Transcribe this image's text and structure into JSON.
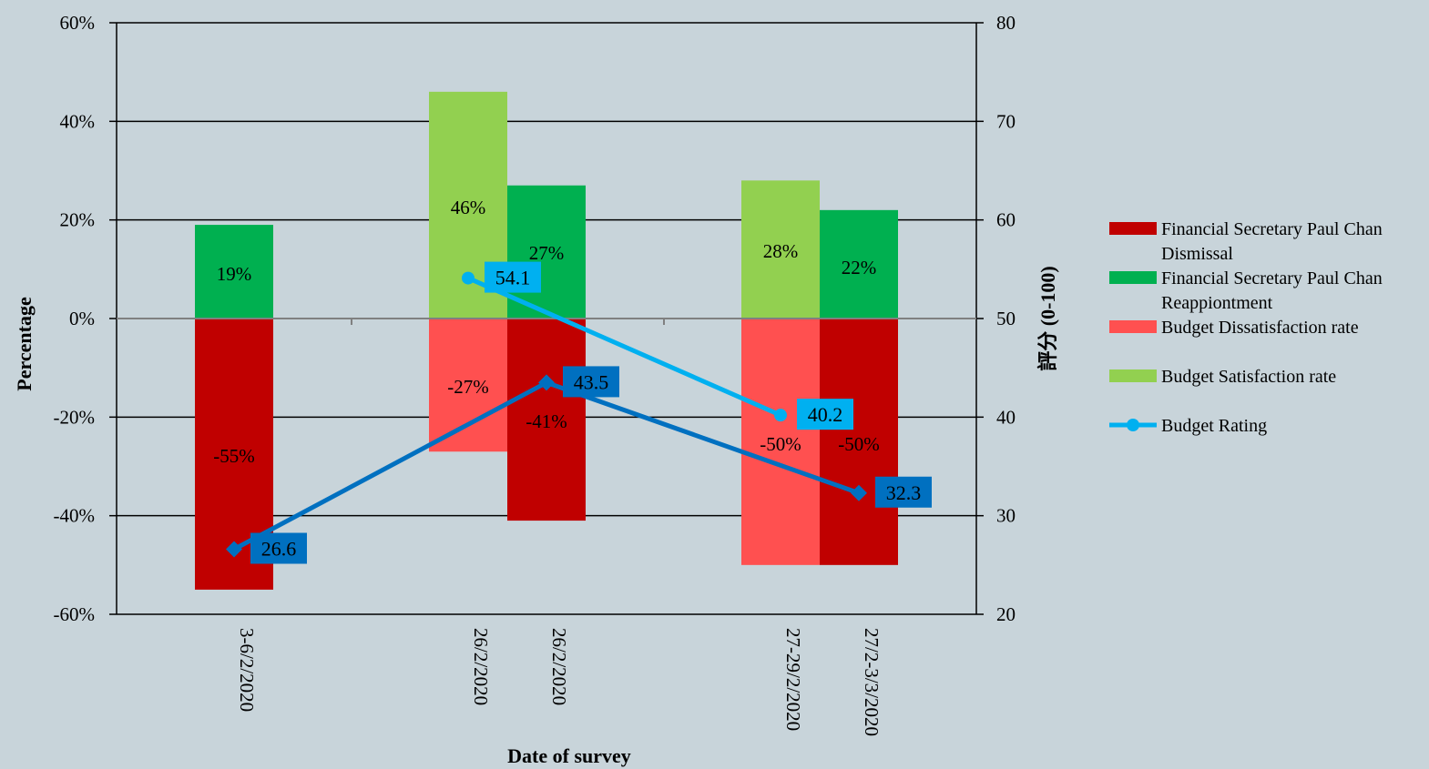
{
  "chart_data": {
    "type": "bar",
    "xlabel": "Date of survey",
    "ylabel": "Percentage",
    "y2label": "評分 (0-100)",
    "ylim": [
      -60,
      60
    ],
    "y2lim": [
      20,
      80
    ],
    "yticks": [
      "60%",
      "40%",
      "20%",
      "0%",
      "-20%",
      "-40%",
      "-60%"
    ],
    "y2ticks": [
      "80",
      "70",
      "60",
      "50",
      "40",
      "30",
      "20"
    ],
    "categories": [
      "3-6/2/2020",
      "26/2/2020",
      "26/2/2020",
      "27-29/2/2020",
      "27/2-3/3/2020"
    ],
    "series": [
      {
        "name": "Financial Secretary Paul Chan Dismissal",
        "color": "#c00000",
        "values": [
          -55,
          null,
          -41,
          null,
          -50
        ],
        "labels": [
          "-55%",
          "",
          "-41%",
          "",
          "-50%"
        ]
      },
      {
        "name": "Financial Secretary Paul Chan Reappiontment",
        "color": "#00b050",
        "values": [
          19,
          null,
          27,
          null,
          22
        ],
        "labels": [
          "19%",
          "",
          "27%",
          "",
          "22%"
        ]
      },
      {
        "name": "Budget Dissatisfaction rate",
        "color": "#ff5050",
        "values": [
          null,
          -27,
          null,
          -50,
          null
        ],
        "labels": [
          "",
          "-27%",
          "",
          "-50%",
          ""
        ]
      },
      {
        "name": "Budget Satisfaction rate",
        "color": "#92d050",
        "values": [
          null,
          46,
          null,
          28,
          null
        ],
        "labels": [
          "",
          "46%",
          "",
          "28%",
          ""
        ]
      }
    ],
    "lines": [
      {
        "name": "Budget Rating",
        "color": "#00b0f0",
        "marker": "circle",
        "axis": "right",
        "points": [
          {
            "category": 1,
            "value": 54.1
          },
          {
            "category": 3,
            "value": 40.2
          }
        ],
        "labels": [
          "54.1",
          "40.2"
        ]
      },
      {
        "name": "",
        "color": "#0070c0",
        "marker": "diamond",
        "axis": "right",
        "points": [
          {
            "category": 0,
            "value": 26.6
          },
          {
            "category": 2,
            "value": 43.5
          },
          {
            "category": 4,
            "value": 32.3
          }
        ],
        "labels": [
          "26.6",
          "43.5",
          "32.3"
        ]
      }
    ],
    "legend": {
      "position": "right",
      "entries": [
        {
          "lines": [
            "Financial Secretary Paul Chan",
            "Dismissal"
          ],
          "color": "#c00000",
          "kind": "bar"
        },
        {
          "lines": [
            "Financial Secretary Paul Chan",
            "Reappiontment"
          ],
          "color": "#00b050",
          "kind": "bar"
        },
        {
          "lines": [
            "Budget Dissatisfaction rate"
          ],
          "color": "#ff5050",
          "kind": "bar"
        },
        {
          "lines": [
            "Budget Satisfaction rate"
          ],
          "color": "#92d050",
          "kind": "bar"
        },
        {
          "lines": [
            "Budget Rating"
          ],
          "color": "#00b0f0",
          "kind": "line"
        }
      ]
    },
    "grid": true
  }
}
